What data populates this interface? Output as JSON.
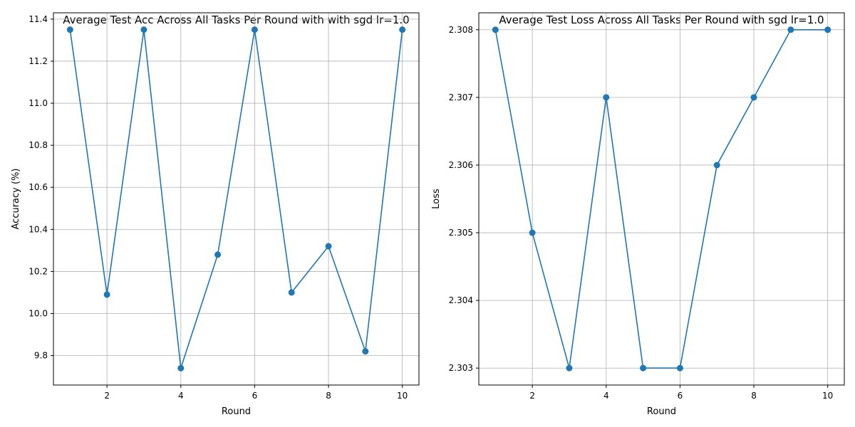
{
  "chart_data": [
    {
      "type": "line",
      "title": "Average Test Acc Across All Tasks Per Round with with sgd lr=1.0",
      "xlabel": "Round",
      "ylabel": "Accuracy (%)",
      "x": [
        1,
        2,
        3,
        4,
        5,
        6,
        7,
        8,
        9,
        10
      ],
      "series": [
        {
          "values": [
            11.35,
            10.09,
            11.35,
            9.74,
            10.28,
            11.35,
            10.1,
            10.32,
            9.82,
            11.35
          ]
        }
      ],
      "xlim": [
        0.55,
        10.45
      ],
      "ylim": [
        9.66,
        11.43
      ],
      "xticks": [
        "2",
        "4",
        "6",
        "8",
        "10"
      ],
      "xtick_values": [
        2,
        4,
        6,
        8,
        10
      ],
      "yticks": [
        "9.8",
        "10.0",
        "10.2",
        "10.4",
        "10.6",
        "10.8",
        "11.0",
        "11.2",
        "11.4"
      ],
      "ytick_values": [
        9.8,
        10.0,
        10.2,
        10.4,
        10.6,
        10.8,
        11.0,
        11.2,
        11.4
      ],
      "grid": true,
      "color": "#1f77b4",
      "marker": "circle"
    },
    {
      "type": "line",
      "title": "Average Test Loss Across All Tasks Per Round with sgd lr=1.0",
      "xlabel": "Round",
      "ylabel": "Loss",
      "x": [
        1,
        2,
        3,
        4,
        5,
        6,
        7,
        8,
        9,
        10
      ],
      "series": [
        {
          "values": [
            2.308,
            2.305,
            2.303,
            2.307,
            2.303,
            2.303,
            2.306,
            2.307,
            2.308,
            2.308
          ]
        }
      ],
      "xlim": [
        0.55,
        10.45
      ],
      "ylim": [
        2.30275,
        2.30825
      ],
      "xticks": [
        "2",
        "4",
        "6",
        "8",
        "10"
      ],
      "xtick_values": [
        2,
        4,
        6,
        8,
        10
      ],
      "yticks": [
        "2.303",
        "2.304",
        "2.305",
        "2.306",
        "2.307",
        "2.308"
      ],
      "ytick_values": [
        2.303,
        2.304,
        2.305,
        2.306,
        2.307,
        2.308
      ],
      "grid": true,
      "color": "#1f77b4",
      "marker": "circle"
    }
  ]
}
